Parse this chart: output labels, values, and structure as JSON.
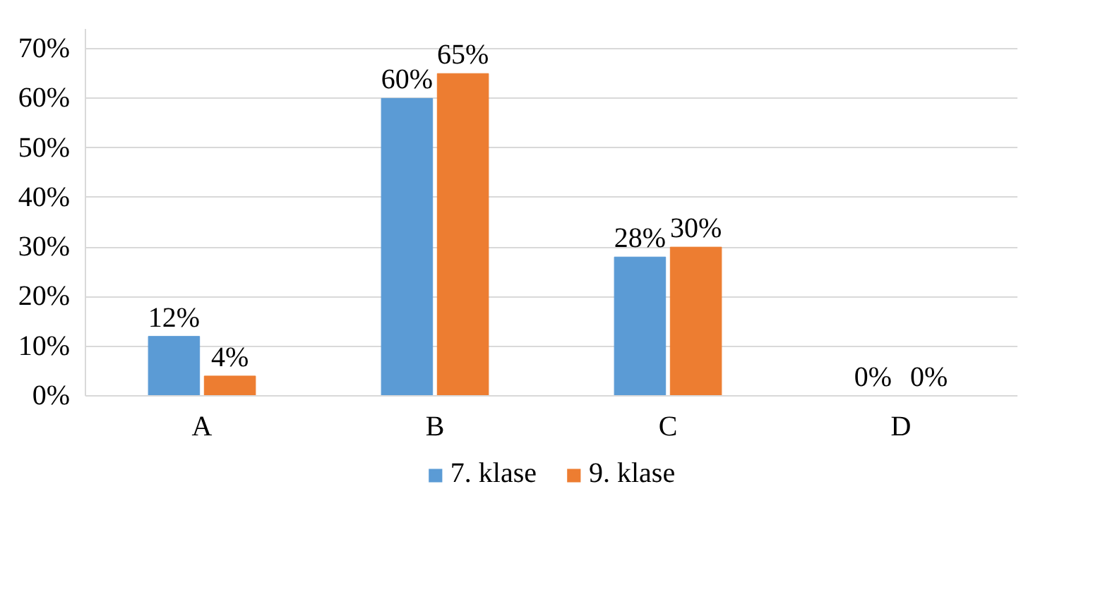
{
  "chart_data": {
    "type": "bar",
    "categories": [
      "A",
      "B",
      "C",
      "D"
    ],
    "series": [
      {
        "name": "7. klase",
        "color": "#5b9bd5",
        "values": [
          12,
          60,
          28,
          0
        ],
        "value_labels": [
          "12%",
          "60%",
          "28%",
          "0%"
        ]
      },
      {
        "name": "9. klase",
        "color": "#ed7d31",
        "values": [
          4,
          65,
          30,
          0
        ],
        "value_labels": [
          "4%",
          "65%",
          "30%",
          "0%"
        ]
      }
    ],
    "ylim": [
      0,
      74
    ],
    "yticks": [
      {
        "value": 0,
        "label": "0%"
      },
      {
        "value": 10,
        "label": "10%"
      },
      {
        "value": 20,
        "label": "20%"
      },
      {
        "value": 30,
        "label": "30%"
      },
      {
        "value": 40,
        "label": "40%"
      },
      {
        "value": 50,
        "label": "50%"
      },
      {
        "value": 60,
        "label": "60%"
      },
      {
        "value": 70,
        "label": "70%"
      }
    ],
    "grid": "y",
    "legend": "bottom"
  }
}
